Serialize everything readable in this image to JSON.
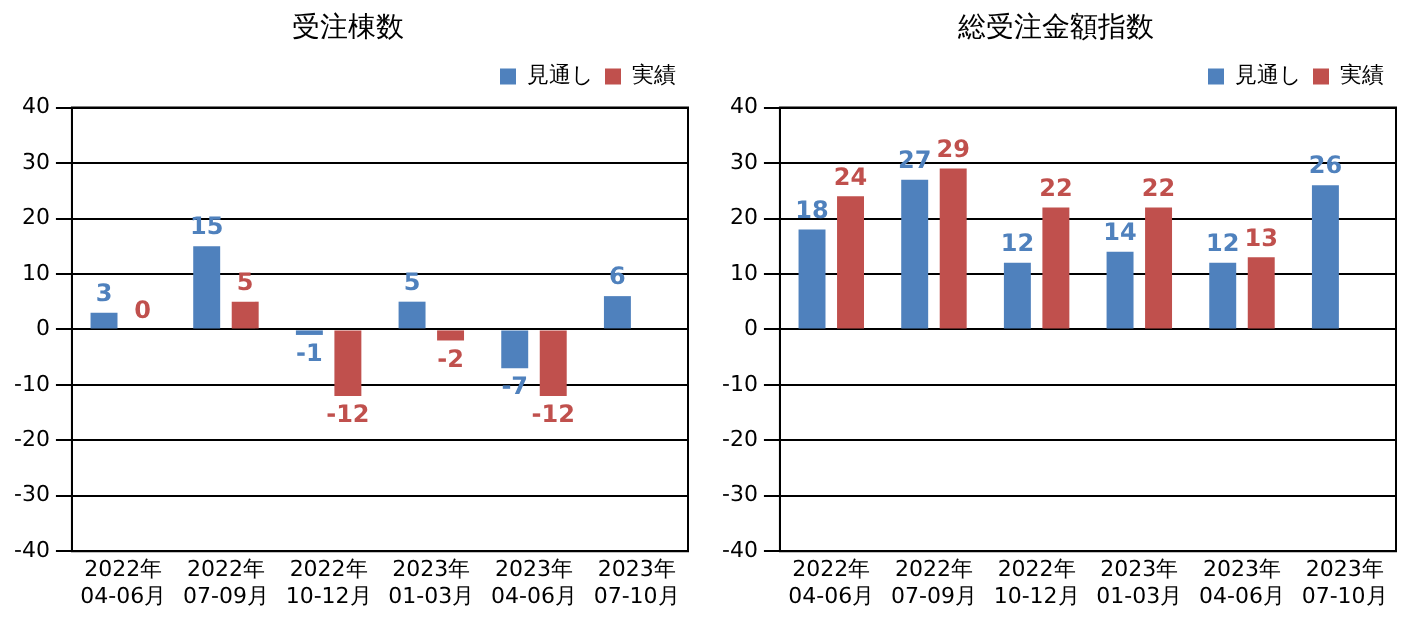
{
  "chart_data": [
    {
      "type": "bar",
      "title": "受注棟数",
      "categories": [
        "2022年\n04-06月",
        "2022年\n07-09月",
        "2022年\n10-12月",
        "2023年\n01-03月",
        "2023年\n04-06月",
        "2023年\n07-10月"
      ],
      "series": [
        {
          "name": "見通し",
          "color": "#4f81bd",
          "values": [
            3,
            15,
            -1,
            5,
            -7,
            6
          ]
        },
        {
          "name": "実績",
          "color": "#c0504d",
          "values": [
            0,
            5,
            -12,
            -2,
            -12,
            null
          ]
        }
      ],
      "ylim": [
        -40,
        40
      ],
      "yticks": [
        -40,
        -30,
        -20,
        -10,
        0,
        10,
        20,
        30,
        40
      ],
      "grid": "y",
      "legend": "top right",
      "data_labels": true
    },
    {
      "type": "bar",
      "title": "総受注金額指数",
      "categories": [
        "2022年\n04-06月",
        "2022年\n07-09月",
        "2022年\n10-12月",
        "2023年\n01-03月",
        "2023年\n04-06月",
        "2023年\n07-10月"
      ],
      "series": [
        {
          "name": "見通し",
          "color": "#4f81bd",
          "values": [
            18,
            27,
            12,
            14,
            12,
            26
          ]
        },
        {
          "name": "実績",
          "color": "#c0504d",
          "values": [
            24,
            29,
            22,
            22,
            13,
            null
          ]
        }
      ],
      "ylim": [
        -40,
        40
      ],
      "yticks": [
        -40,
        -30,
        -20,
        -10,
        0,
        10,
        20,
        30,
        40
      ],
      "grid": "y",
      "legend": "top right",
      "data_labels": true
    }
  ]
}
